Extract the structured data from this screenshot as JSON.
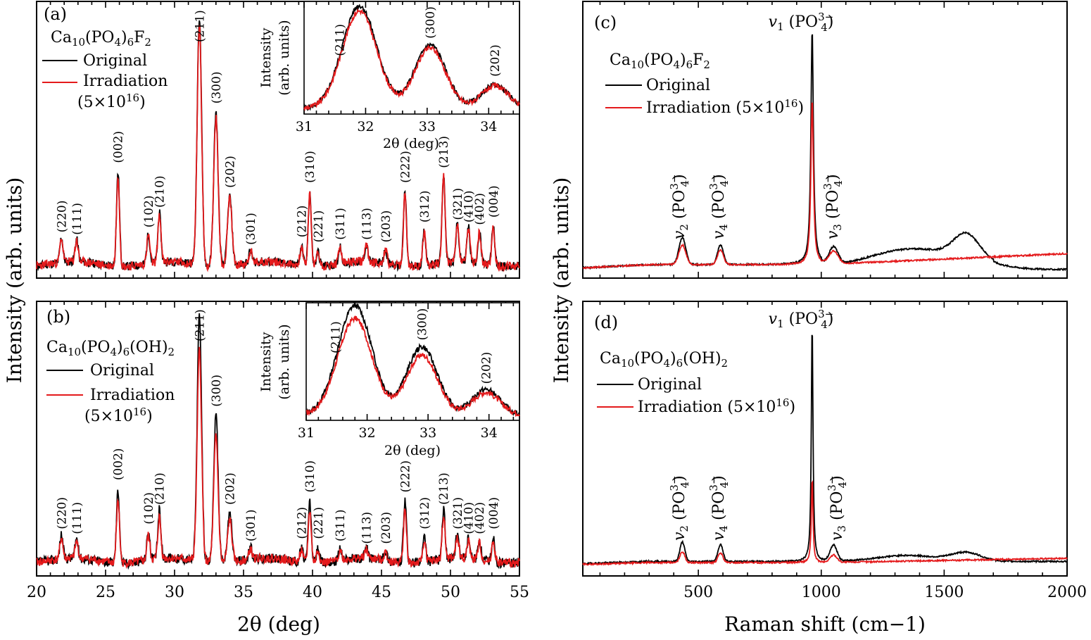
{
  "chart_data": [
    {
      "panel": "a",
      "type": "line",
      "panel_label": "(a)",
      "compound": "Ca10(PO4)6F2",
      "xlim": [
        20,
        55
      ],
      "xticks": [],
      "legend": {
        "placement": "top-left"
      },
      "series": [
        {
          "name": "Original",
          "color": "#000000"
        },
        {
          "name": "Irradiation (5×10¹⁶)",
          "color": "#e41a1c"
        }
      ],
      "peaks": [
        {
          "label": "(220)",
          "x": 21.8,
          "h": 0.1
        },
        {
          "label": "(111)",
          "x": 22.9,
          "h": 0.09
        },
        {
          "label": "(002)",
          "x": 25.9,
          "h": 0.38
        },
        {
          "label": "(102)",
          "x": 28.1,
          "h": 0.12
        },
        {
          "label": "(210)",
          "x": 28.9,
          "h": 0.2
        },
        {
          "label": "(211)",
          "x": 31.8,
          "h": 1.0
        },
        {
          "label": "(300)",
          "x": 33.0,
          "h": 0.62
        },
        {
          "label": "(202)",
          "x": 34.0,
          "h": 0.28
        },
        {
          "label": "(301)",
          "x": 35.5,
          "h": 0.05
        },
        {
          "label": "(212)",
          "x": 39.2,
          "h": 0.08
        },
        {
          "label": "(310)",
          "x": 39.8,
          "h": 0.3
        },
        {
          "label": "(221)",
          "x": 40.4,
          "h": 0.06
        },
        {
          "label": "(311)",
          "x": 42.0,
          "h": 0.07
        },
        {
          "label": "(113)",
          "x": 43.9,
          "h": 0.07
        },
        {
          "label": "(203)",
          "x": 45.3,
          "h": 0.06
        },
        {
          "label": "(222)",
          "x": 46.7,
          "h": 0.3
        },
        {
          "label": "(312)",
          "x": 48.1,
          "h": 0.14
        },
        {
          "label": "(213)",
          "x": 49.5,
          "h": 0.36
        },
        {
          "label": "(321)",
          "x": 50.5,
          "h": 0.15
        },
        {
          "label": "(410)",
          "x": 51.3,
          "h": 0.14
        },
        {
          "label": "(402)",
          "x": 52.1,
          "h": 0.13
        },
        {
          "label": "(004)",
          "x": 53.1,
          "h": 0.16
        }
      ],
      "inset": {
        "xlim": [
          31,
          34.5
        ],
        "xticks": [
          31,
          32,
          33,
          34
        ],
        "xlabel": "2θ (deg)",
        "ylabel": "Intensity (arb. units)",
        "peaks": [
          {
            "label": "(211)",
            "x": 31.9
          },
          {
            "label": "(300)",
            "x": 33.05
          },
          {
            "label": "(202)",
            "x": 34.1
          }
        ]
      }
    },
    {
      "panel": "b",
      "type": "line",
      "panel_label": "(b)",
      "compound": "Ca10(PO4)6(OH)2",
      "xlim": [
        20,
        55
      ],
      "xticks": [
        20,
        25,
        30,
        35,
        40,
        45,
        50,
        55
      ],
      "xlabel": "2θ (deg)",
      "legend": {
        "placement": "top-left"
      },
      "series": [
        {
          "name": "Original",
          "color": "#000000"
        },
        {
          "name": "Irradiation (5×10¹⁶)",
          "color": "#e41a1c"
        }
      ],
      "peaks": [
        {
          "label": "(220)",
          "x": 21.8,
          "h": 0.1
        },
        {
          "label": "(111)",
          "x": 22.9,
          "h": 0.08
        },
        {
          "label": "(002)",
          "x": 25.9,
          "h": 0.3
        },
        {
          "label": "(102)",
          "x": 28.1,
          "h": 0.12
        },
        {
          "label": "(210)",
          "x": 28.9,
          "h": 0.2
        },
        {
          "label": "(211)",
          "x": 31.8,
          "h": 1.0
        },
        {
          "label": "(300)",
          "x": 33.0,
          "h": 0.6
        },
        {
          "label": "(202)",
          "x": 34.0,
          "h": 0.2
        },
        {
          "label": "(301)",
          "x": 35.5,
          "h": 0.05
        },
        {
          "label": "(212)",
          "x": 39.2,
          "h": 0.06
        },
        {
          "label": "(310)",
          "x": 39.8,
          "h": 0.25
        },
        {
          "label": "(221)",
          "x": 40.4,
          "h": 0.06
        },
        {
          "label": "(311)",
          "x": 42.0,
          "h": 0.05
        },
        {
          "label": "(113)",
          "x": 43.9,
          "h": 0.04
        },
        {
          "label": "(203)",
          "x": 45.3,
          "h": 0.04
        },
        {
          "label": "(222)",
          "x": 46.7,
          "h": 0.25
        },
        {
          "label": "(312)",
          "x": 48.1,
          "h": 0.1
        },
        {
          "label": "(213)",
          "x": 49.5,
          "h": 0.2
        },
        {
          "label": "(321)",
          "x": 50.5,
          "h": 0.1
        },
        {
          "label": "(410)",
          "x": 51.3,
          "h": 0.08
        },
        {
          "label": "(402)",
          "x": 52.1,
          "h": 0.08
        },
        {
          "label": "(004)",
          "x": 53.1,
          "h": 0.1
        }
      ],
      "inset": {
        "xlim": [
          31,
          34.5
        ],
        "xticks": [
          31,
          32,
          33,
          34
        ],
        "xlabel": "2θ (deg)",
        "ylabel": "Intensity (arb. units)",
        "peaks": [
          {
            "label": "(211)",
            "x": 31.8
          },
          {
            "label": "(300)",
            "x": 32.9
          },
          {
            "label": "(202)",
            "x": 33.95
          }
        ]
      }
    },
    {
      "panel": "c",
      "type": "line",
      "panel_label": "(c)",
      "compound": "Ca10(PO4)6F2",
      "xlim": [
        30,
        2000
      ],
      "xticks": [],
      "legend": {
        "placement": "top-left"
      },
      "series": [
        {
          "name": "Original",
          "color": "#000000"
        },
        {
          "name": "Irradiation (5×10¹⁶)",
          "color": "#e41a1c"
        }
      ],
      "bands": [
        {
          "label": "v2 (PO4 3−)",
          "x": 435
        },
        {
          "label": "v4 (PO4 3−)",
          "x": 590
        },
        {
          "label": "v1 (PO4 3−)",
          "x": 963
        },
        {
          "label": "v3 (PO4 3−)",
          "x": 1050
        }
      ]
    },
    {
      "panel": "d",
      "type": "line",
      "panel_label": "(d)",
      "compound": "Ca10(PO4)6(OH)2",
      "xlim": [
        30,
        2000
      ],
      "xticks": [
        500,
        1000,
        1500,
        2000
      ],
      "xlabel": "Raman shift (cm−1)",
      "legend": {
        "placement": "top-left"
      },
      "series": [
        {
          "name": "Original",
          "color": "#000000"
        },
        {
          "name": "Irradiation (5×10¹⁶)",
          "color": "#e41a1c"
        }
      ],
      "bands": [
        {
          "label": "v2 (PO4 3−)",
          "x": 435
        },
        {
          "label": "v4 (PO4 3−)",
          "x": 590
        },
        {
          "label": "v1 (PO4 3−)",
          "x": 963
        },
        {
          "label": "v3 (PO4 3−)",
          "x": 1050
        }
      ]
    }
  ],
  "labels": {
    "ylabel_left": "Intensity (arb. units)",
    "ylabel_right": "Intensity (arb. units)",
    "xlabel_left": "2θ (deg)",
    "xlabel_right": "Raman shift (cm−1)"
  }
}
